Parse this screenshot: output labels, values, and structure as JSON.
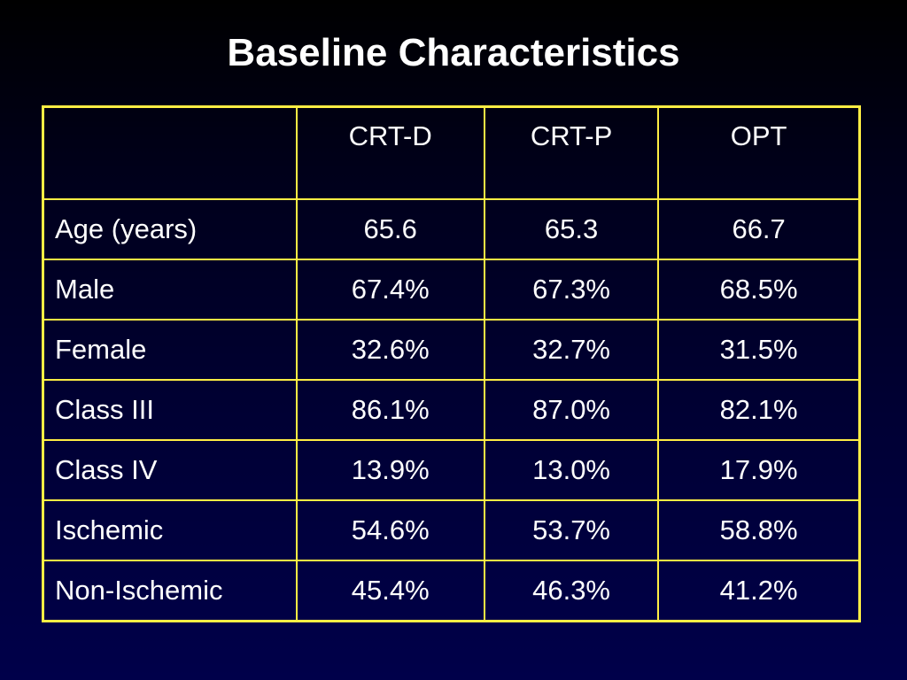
{
  "slide": {
    "title": "Baseline Characteristics"
  },
  "table": {
    "headers": [
      "",
      "CRT-D",
      "CRT-P",
      "OPT"
    ],
    "rows": [
      {
        "label": "Age (years)",
        "values": [
          "65.6",
          "65.3",
          "66.7"
        ]
      },
      {
        "label": "Male",
        "values": [
          "67.4%",
          "67.3%",
          "68.5%"
        ]
      },
      {
        "label": "Female",
        "values": [
          "32.6%",
          "32.7%",
          "31.5%"
        ]
      },
      {
        "label": "Class III",
        "values": [
          "86.1%",
          "87.0%",
          "82.1%"
        ]
      },
      {
        "label": "Class IV",
        "values": [
          "13.9%",
          "13.0%",
          "17.9%"
        ]
      },
      {
        "label": "Ischemic",
        "values": [
          "54.6%",
          "53.7%",
          "58.8%"
        ]
      },
      {
        "label": "Non-Ischemic",
        "values": [
          "45.4%",
          "46.3%",
          "41.2%"
        ]
      }
    ]
  },
  "colors": {
    "background_top": "#000000",
    "background_bottom": "#00004a",
    "grid_lines": "#ffee44",
    "text": "#ffffff"
  }
}
